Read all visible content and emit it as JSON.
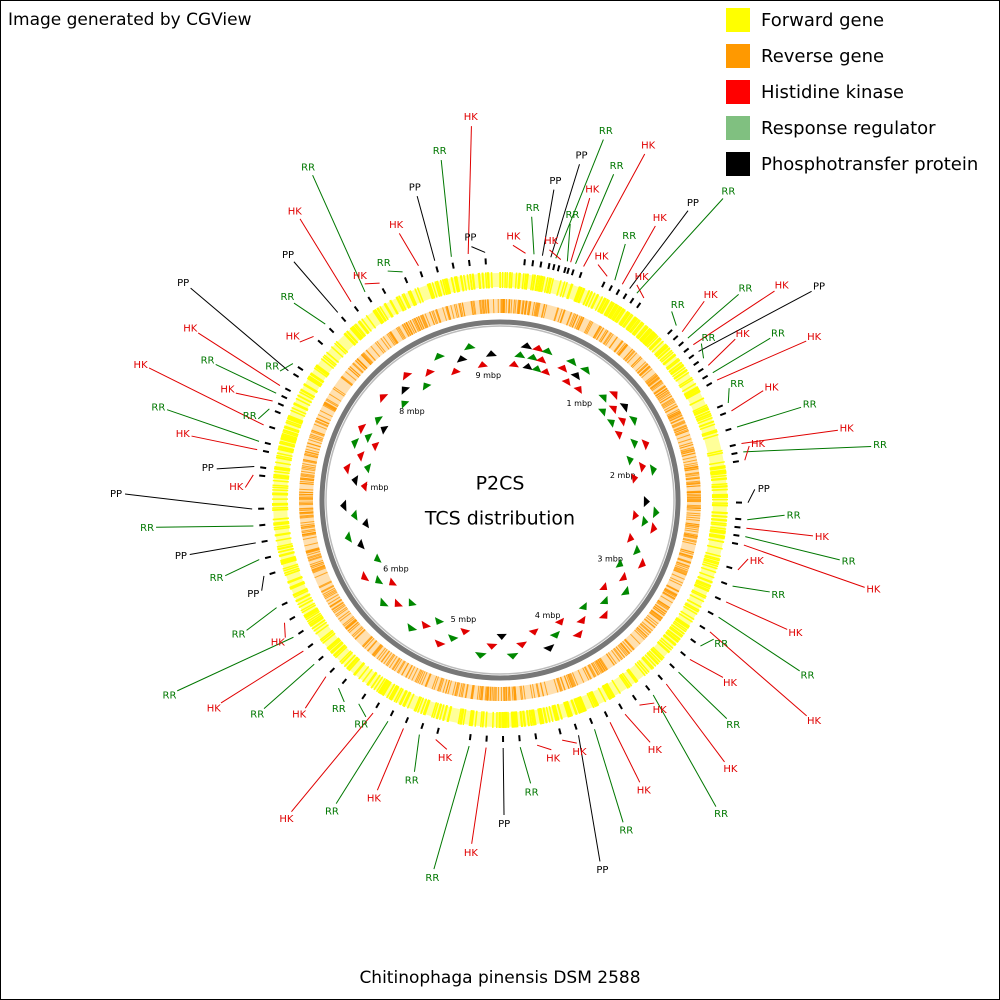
{
  "header": {
    "credit": "Image generated by CGView"
  },
  "legend": [
    {
      "label": "Forward gene",
      "color": "#ffff00"
    },
    {
      "label": "Reverse gene",
      "color": "#ff9900"
    },
    {
      "label": "Histidine kinase",
      "color": "#ff0000"
    },
    {
      "label": "Response regulator",
      "color": "#80c080"
    },
    {
      "label": "Phosphotransfer protein",
      "color": "#000000"
    }
  ],
  "center": {
    "line1": "P2CS",
    "line2": "TCS distribution"
  },
  "scale_labels": [
    "1 mbp",
    "2 mbp",
    "3 mbp",
    "4 mbp",
    "5 mbp",
    "6 mbp",
    "7 mbp",
    "8 mbp",
    "9 mbp"
  ],
  "footer": {
    "organism": "Chitinophaga pinensis DSM 2588"
  },
  "label_colors": {
    "HK": "#e00000",
    "RR": "#007700",
    "PP": "#000000"
  },
  "features": [
    {
      "label": "HK",
      "position": 0.15
    },
    {
      "label": "RR",
      "position": 0.2
    },
    {
      "label": "PP",
      "position": 0.25
    },
    {
      "label": "PP",
      "position": 0.3
    },
    {
      "label": "RR",
      "position": 0.33
    },
    {
      "label": "HK",
      "position": 0.36
    },
    {
      "label": "RR",
      "position": 0.4
    },
    {
      "label": "HK",
      "position": 0.42
    },
    {
      "label": "RR",
      "position": 0.45
    },
    {
      "label": "HK",
      "position": 0.5
    },
    {
      "label": "HK",
      "position": 0.65
    },
    {
      "label": "RR",
      "position": 0.7
    },
    {
      "label": "HK",
      "position": 0.75
    },
    {
      "label": "PP",
      "position": 0.8
    },
    {
      "label": "RR",
      "position": 0.85
    },
    {
      "label": "HK",
      "position": 0.9
    },
    {
      "label": "RR",
      "position": 1.15
    },
    {
      "label": "HK",
      "position": 1.2
    },
    {
      "label": "RR",
      "position": 1.25
    },
    {
      "label": "HK",
      "position": 1.3
    },
    {
      "label": "PP",
      "position": 1.35
    },
    {
      "label": "RR",
      "position": 1.4
    },
    {
      "label": "HK",
      "position": 1.45
    },
    {
      "label": "RR",
      "position": 1.5
    },
    {
      "label": "HK",
      "position": 1.55
    },
    {
      "label": "RR",
      "position": 1.7
    },
    {
      "label": "HK",
      "position": 1.75
    },
    {
      "label": "RR",
      "position": 1.85
    },
    {
      "label": "HK",
      "position": 1.95
    },
    {
      "label": "RR",
      "position": 2.0
    },
    {
      "label": "HK",
      "position": 2.05
    },
    {
      "label": "PP",
      "position": 2.3
    },
    {
      "label": "RR",
      "position": 2.4
    },
    {
      "label": "HK",
      "position": 2.45
    },
    {
      "label": "RR",
      "position": 2.5
    },
    {
      "label": "HK",
      "position": 2.55
    },
    {
      "label": "HK",
      "position": 2.7
    },
    {
      "label": "RR",
      "position": 2.8
    },
    {
      "label": "HK",
      "position": 2.9
    },
    {
      "label": "RR",
      "position": 3.0
    },
    {
      "label": "HK",
      "position": 3.1
    },
    {
      "label": "RR",
      "position": 3.2
    },
    {
      "label": "HK",
      "position": 3.3
    },
    {
      "label": "RR",
      "position": 3.4
    },
    {
      "label": "HK",
      "position": 3.5
    },
    {
      "label": "RR",
      "position": 3.6
    },
    {
      "label": "HK",
      "position": 3.7
    },
    {
      "label": "HK",
      "position": 3.8
    },
    {
      "label": "HK",
      "position": 3.9
    },
    {
      "label": "RR",
      "position": 4.0
    },
    {
      "label": "PP",
      "position": 4.1
    },
    {
      "label": "HK",
      "position": 4.2
    },
    {
      "label": "HK",
      "position": 4.35
    },
    {
      "label": "RR",
      "position": 4.45
    },
    {
      "label": "PP",
      "position": 4.55
    },
    {
      "label": "HK",
      "position": 4.65
    },
    {
      "label": "RR",
      "position": 4.75
    },
    {
      "label": "HK",
      "position": 4.95
    },
    {
      "label": "RR",
      "position": 5.05
    },
    {
      "label": "HK",
      "position": 5.15
    },
    {
      "label": "RR",
      "position": 5.25
    },
    {
      "label": "HK",
      "position": 5.35
    },
    {
      "label": "RR",
      "position": 5.45
    },
    {
      "label": "RR",
      "position": 5.6
    },
    {
      "label": "HK",
      "position": 5.7
    },
    {
      "label": "RR",
      "position": 5.8
    },
    {
      "label": "HK",
      "position": 5.9
    },
    {
      "label": "RR",
      "position": 6.0
    },
    {
      "label": "HK",
      "position": 6.1
    },
    {
      "label": "RR",
      "position": 6.2
    },
    {
      "label": "PP",
      "position": 6.4
    },
    {
      "label": "RR",
      "position": 6.5
    },
    {
      "label": "PP",
      "position": 6.6
    },
    {
      "label": "RR",
      "position": 6.7
    },
    {
      "label": "PP",
      "position": 6.8
    },
    {
      "label": "HK",
      "position": 7.0
    },
    {
      "label": "PP",
      "position": 7.05
    },
    {
      "label": "HK",
      "position": 7.15
    },
    {
      "label": "RR",
      "position": 7.2
    },
    {
      "label": "HK",
      "position": 7.3
    },
    {
      "label": "RR",
      "position": 7.4
    },
    {
      "label": "HK",
      "position": 7.45
    },
    {
      "label": "RR",
      "position": 7.5
    },
    {
      "label": "HK",
      "position": 7.55
    },
    {
      "label": "PP",
      "position": 7.65
    },
    {
      "label": "RR",
      "position": 7.7
    },
    {
      "label": "HK",
      "position": 7.9
    },
    {
      "label": "RR",
      "position": 8.0
    },
    {
      "label": "PP",
      "position": 8.1
    },
    {
      "label": "HK",
      "position": 8.2
    },
    {
      "label": "RR",
      "position": 8.3
    },
    {
      "label": "HK",
      "position": 8.4
    },
    {
      "label": "RR",
      "position": 8.55
    },
    {
      "label": "HK",
      "position": 8.65
    },
    {
      "label": "PP",
      "position": 8.75
    },
    {
      "label": "RR",
      "position": 8.85
    },
    {
      "label": "HK",
      "position": 8.95
    },
    {
      "label": "PP",
      "position": 9.05
    }
  ]
}
